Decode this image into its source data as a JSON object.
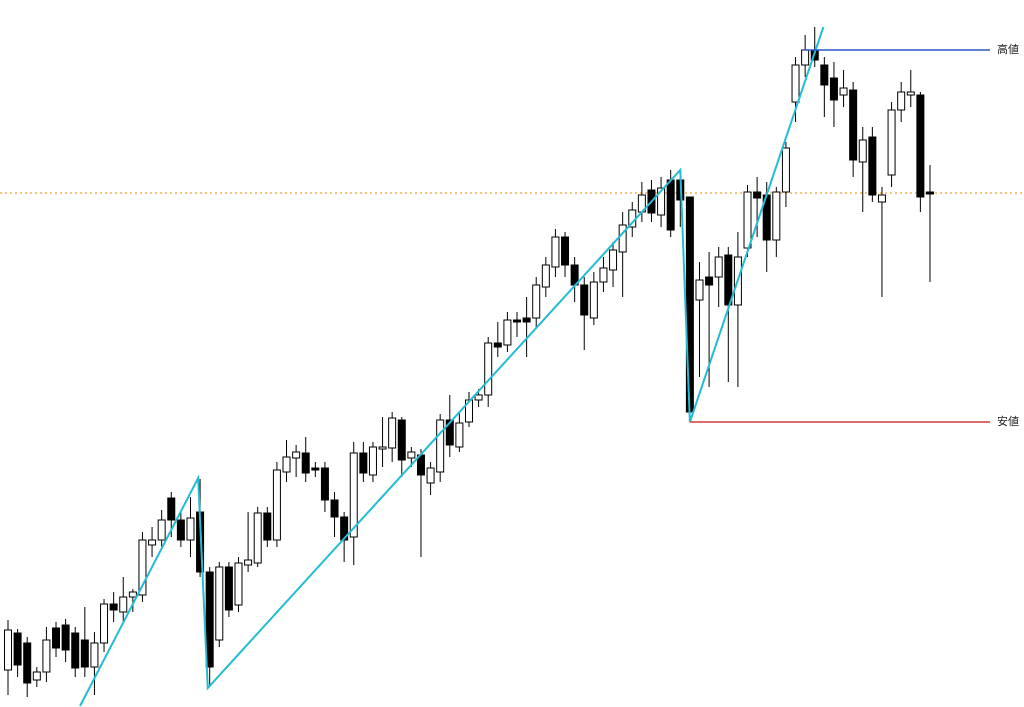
{
  "chart_data": {
    "type": "candlestick",
    "ylim": [
      0,
      707
    ],
    "up_color": "#ffffff",
    "down_color": "#000000",
    "open": [
      37,
      74,
      64,
      27,
      35,
      79,
      82,
      74,
      67,
      40,
      64,
      103,
      95,
      110,
      112,
      162,
      167,
      209,
      187,
      167,
      195,
      135,
      67,
      140,
      102,
      142,
      144,
      194,
      167,
      235,
      249,
      254,
      239,
      239,
      207,
      190,
      170,
      254,
      232,
      258,
      259,
      287,
      249,
      252,
      224,
      235,
      287,
      260,
      285,
      307,
      312,
      364,
      362,
      387,
      389,
      389,
      420,
      440,
      470,
      442,
      422,
      389,
      425,
      437,
      455,
      480,
      495,
      517,
      492,
      527,
      527,
      510,
      407,
      430,
      430,
      452,
      402,
      459,
      515,
      512,
      467,
      515,
      605,
      642,
      657,
      642,
      629,
      612,
      617,
      545,
      570,
      505,
      532,
      597,
      612,
      612,
      515
    ],
    "high": [
      87,
      78,
      70,
      40,
      80,
      85,
      88,
      80,
      100,
      75,
      108,
      115,
      130,
      118,
      175,
      180,
      197,
      215,
      195,
      210,
      228,
      140,
      145,
      145,
      150,
      195,
      200,
      200,
      245,
      267,
      262,
      270,
      245,
      245,
      215,
      195,
      265,
      265,
      265,
      290,
      295,
      290,
      260,
      258,
      245,
      293,
      312,
      295,
      315,
      318,
      370,
      385,
      395,
      395,
      410,
      430,
      450,
      478,
      475,
      450,
      430,
      435,
      450,
      465,
      495,
      505,
      525,
      527,
      530,
      537,
      537,
      510,
      445,
      455,
      460,
      460,
      475,
      522,
      530,
      525,
      520,
      565,
      650,
      672,
      680,
      650,
      645,
      637,
      625,
      580,
      580,
      520,
      605,
      625,
      637,
      615,
      542
    ],
    "low": [
      12,
      30,
      10,
      20,
      25,
      50,
      45,
      30,
      30,
      12,
      55,
      85,
      85,
      95,
      105,
      150,
      160,
      170,
      160,
      150,
      130,
      20,
      60,
      90,
      95,
      135,
      140,
      160,
      160,
      225,
      230,
      225,
      230,
      195,
      170,
      145,
      142,
      225,
      225,
      240,
      245,
      230,
      240,
      150,
      212,
      225,
      250,
      255,
      280,
      300,
      300,
      350,
      355,
      370,
      350,
      380,
      410,
      430,
      430,
      405,
      357,
      382,
      415,
      420,
      410,
      470,
      485,
      485,
      480,
      470,
      480,
      290,
      330,
      320,
      400,
      325,
      320,
      450,
      470,
      435,
      450,
      500,
      585,
      630,
      640,
      590,
      580,
      600,
      530,
      495,
      505,
      410,
      520,
      585,
      600,
      495,
      425
    ],
    "close": [
      77,
      42,
      24,
      35,
      67,
      59,
      57,
      39,
      40,
      64,
      103,
      97,
      110,
      115,
      167,
      167,
      187,
      187,
      167,
      189,
      135,
      40,
      140,
      97,
      144,
      147,
      194,
      167,
      237,
      250,
      255,
      234,
      237,
      207,
      190,
      167,
      254,
      234,
      260,
      260,
      289,
      247,
      255,
      232,
      239,
      287,
      262,
      284,
      307,
      312,
      364,
      360,
      387,
      385,
      385,
      422,
      442,
      470,
      442,
      422,
      392,
      425,
      439,
      457,
      482,
      497,
      512,
      494,
      519,
      477,
      507,
      295,
      427,
      422,
      450,
      402,
      450,
      515,
      509,
      467,
      515,
      559,
      642,
      657,
      647,
      622,
      607,
      619,
      547,
      567,
      512,
      512,
      597,
      615,
      615,
      510,
      513
    ],
    "zigzag": {
      "x": [
        7.5,
        19.8,
        20.8,
        70,
        71,
        84.9
      ],
      "values": [
        1,
        229,
        19,
        537,
        285,
        680
      ],
      "color": "#22bcd4"
    },
    "levels": [
      {
        "label": "高値",
        "value": 657,
        "x_start": 82.8,
        "color": "#2a56c6"
      },
      {
        "label": "安値",
        "value": 285,
        "x_start": 71,
        "color": "#d23a3a"
      }
    ],
    "price_line": {
      "value": 514,
      "color": "#f0a030"
    }
  }
}
